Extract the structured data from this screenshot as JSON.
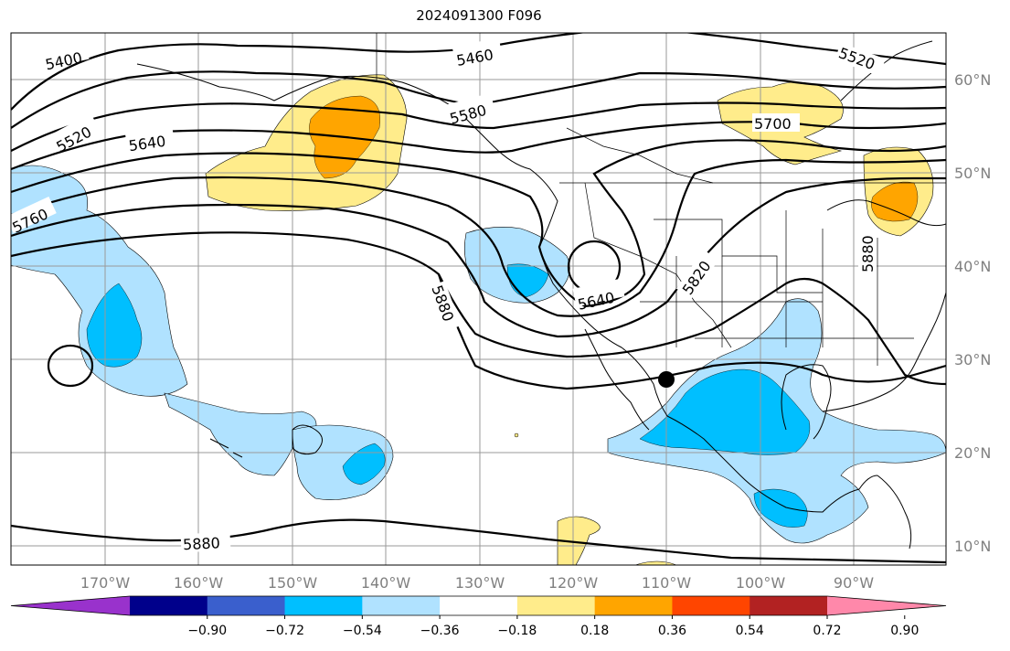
{
  "title": "2024091300 F096",
  "map": {
    "lon_labels": [
      "170°W",
      "160°W",
      "150°W",
      "140°W",
      "130°W",
      "120°W",
      "110°W",
      "100°W",
      "90°W"
    ],
    "lat_labels": [
      "60°N",
      "50°N",
      "40°N",
      "30°N",
      "20°N",
      "10°N"
    ],
    "contour_labels": [
      "5400",
      "5460",
      "5520",
      "5520",
      "5580",
      "5640",
      "5700",
      "5760",
      "5820",
      "5880",
      "5880",
      "5880",
      "5640"
    ]
  },
  "colorbar": {
    "tick_labels": [
      "−0.90",
      "−0.72",
      "−0.54",
      "−0.36",
      "−0.18",
      "0.18",
      "0.36",
      "0.54",
      "0.72",
      "0.90"
    ],
    "colors": [
      "#9932cc",
      "#00008b",
      "#3a5fcd",
      "#00bfff",
      "#b0e2ff",
      "#ffffff",
      "#ffec8b",
      "#ffa500",
      "#ff4500",
      "#b22222",
      "#ff88aa"
    ]
  },
  "legend_colors": {
    "light_blue": "#b0e2ff",
    "blue": "#00bfff",
    "light_yellow": "#ffec8b",
    "orange": "#ffa500"
  }
}
